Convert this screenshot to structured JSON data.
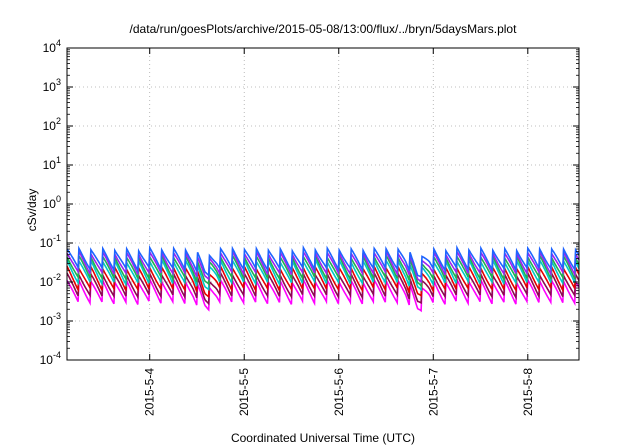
{
  "chart_data": {
    "type": "line",
    "title": "/data/run/goesPlots/archive/2015-05-08/13:00/flux/../bryn/5daysMars.plot",
    "xlabel": "Coordinated Universal Time (UTC)",
    "ylabel": "cSv/day",
    "yscale": "log",
    "ylim": [
      0.0001,
      10000
    ],
    "xlim": [
      "2015-05-03 03:00",
      "2015-05-08 13:00"
    ],
    "grid": true,
    "legend": "none",
    "y_ticks": [
      {
        "value": 0.0001,
        "base": "10",
        "exp": "-4"
      },
      {
        "value": 0.001,
        "base": "10",
        "exp": "-3"
      },
      {
        "value": 0.01,
        "base": "10",
        "exp": "-2"
      },
      {
        "value": 0.1,
        "base": "10",
        "exp": "-1"
      },
      {
        "value": 1,
        "base": "10",
        "exp": "0"
      },
      {
        "value": 10,
        "base": "10",
        "exp": "1"
      },
      {
        "value": 100,
        "base": "10",
        "exp": "2"
      },
      {
        "value": 1000,
        "base": "10",
        "exp": "3"
      },
      {
        "value": 10000,
        "base": "10",
        "exp": "4"
      }
    ],
    "x_ticks": [
      {
        "value": "2015-05-04 00:00",
        "label": "2015-5-4"
      },
      {
        "value": "2015-05-05 00:00",
        "label": "2015-5-5"
      },
      {
        "value": "2015-05-06 00:00",
        "label": "2015-5-6"
      },
      {
        "value": "2015-05-07 00:00",
        "label": "2015-5-7"
      },
      {
        "value": "2015-05-08 00:00",
        "label": "2015-5-8"
      }
    ],
    "series": [
      {
        "color": "#ff00ff",
        "peak": 0.011,
        "trough": 0.0028,
        "label_visible": false
      },
      {
        "color": "#8b0a50",
        "peak": 0.016,
        "trough": 0.0042,
        "label_visible": false
      },
      {
        "color": "#e60000",
        "peak": 0.024,
        "trough": 0.0062,
        "label_visible": false
      },
      {
        "color": "#00c8c8",
        "peak": 0.036,
        "trough": 0.009,
        "label_visible": false
      },
      {
        "color": "#20b050",
        "peak": 0.046,
        "trough": 0.012,
        "label_visible": false
      },
      {
        "color": "#a020f0",
        "peak": 0.058,
        "trough": 0.016,
        "label_visible": false
      },
      {
        "color": "#1e64ff",
        "peak": 0.072,
        "trough": 0.021,
        "label_visible": false
      }
    ],
    "cycles_per_day": 8,
    "dips": [
      {
        "value": "2015-05-04 14:00",
        "depth": 0.45
      },
      {
        "value": "2015-05-06 20:00",
        "depth": 0.5
      }
    ]
  }
}
